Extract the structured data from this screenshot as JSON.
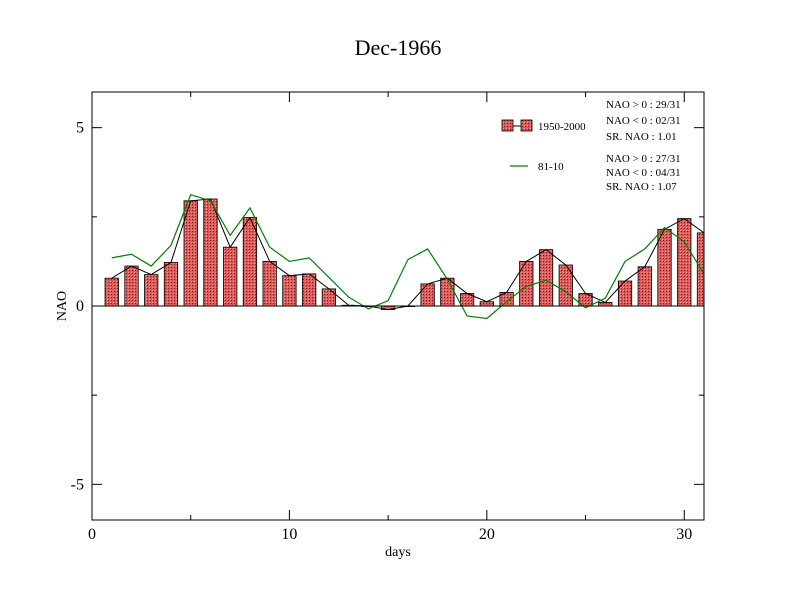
{
  "chart_data": {
    "type": "bar",
    "title": "Dec-1966",
    "xlabel": "days",
    "ylabel": "NAO",
    "xlim": [
      0,
      31
    ],
    "ylim": [
      -6,
      6
    ],
    "xticks": [
      0,
      10,
      20,
      30
    ],
    "yticks": [
      -5,
      0,
      5
    ],
    "xtick_labels": [
      "0",
      "10",
      "20",
      "30"
    ],
    "ytick_labels": [
      "-5",
      "0",
      "5"
    ],
    "x": [
      1,
      2,
      3,
      4,
      5,
      6,
      7,
      8,
      9,
      10,
      11,
      12,
      13,
      14,
      15,
      16,
      17,
      18,
      19,
      20,
      21,
      22,
      23,
      24,
      25,
      26,
      27,
      28,
      29,
      30,
      31
    ],
    "series": [
      {
        "name": "1950-2000",
        "kind": "bar",
        "values": [
          0.78,
          1.12,
          0.88,
          1.22,
          2.95,
          3.0,
          1.65,
          2.48,
          1.25,
          0.85,
          0.9,
          0.48,
          0.02,
          0.0,
          -0.1,
          0.0,
          0.62,
          0.78,
          0.35,
          0.12,
          0.38,
          1.25,
          1.58,
          1.15,
          0.35,
          0.1,
          0.7,
          1.1,
          2.15,
          2.45,
          2.05
        ],
        "color": "#e06060"
      },
      {
        "name": "81-10",
        "kind": "line",
        "values": [
          1.35,
          1.45,
          1.12,
          1.7,
          3.12,
          2.95,
          1.98,
          2.75,
          1.65,
          1.25,
          1.35,
          0.8,
          0.25,
          -0.08,
          0.15,
          1.3,
          1.6,
          0.75,
          -0.28,
          -0.35,
          0.12,
          0.55,
          0.72,
          0.4,
          -0.05,
          0.22,
          1.25,
          1.6,
          2.2,
          1.8,
          0.9
        ],
        "color": "#008000"
      }
    ],
    "legend": [
      {
        "label": "1950-2000",
        "stats": [
          "NAO > 0 : 29/31",
          "NAO < 0 : 02/31",
          "SR. NAO :  1.01"
        ]
      },
      {
        "label": "81-10",
        "stats": [
          "NAO > 0 : 27/31",
          "NAO < 0 : 04/31",
          "SR. NAO :  1.07"
        ]
      }
    ],
    "legend_position": "top-right",
    "grid": false
  }
}
